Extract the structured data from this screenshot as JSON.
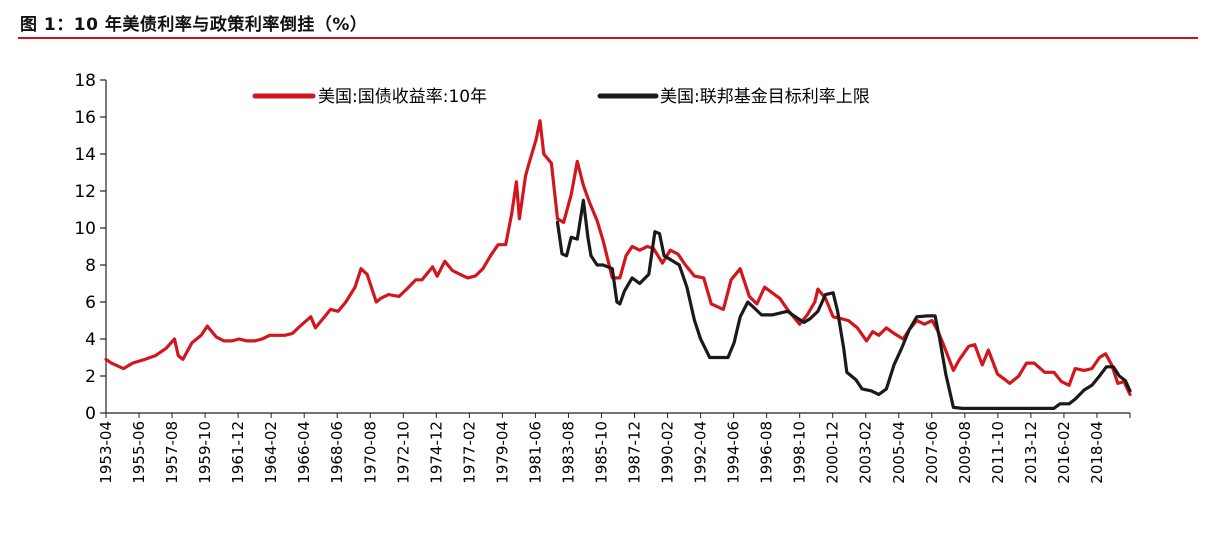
{
  "figure_title": "图 1：10 年美债利率与政策利率倒挂（%）",
  "colors": {
    "treasury": "#d2161d",
    "fedfunds": "#1a1a1a",
    "rule": "#c0161c"
  },
  "chart_data": {
    "type": "line",
    "title": "图 1：10 年美债利率与政策利率倒挂（%）",
    "xlabel": "",
    "ylabel": "",
    "ylim": [
      0,
      18
    ],
    "yticks": [
      0,
      2,
      4,
      6,
      8,
      10,
      12,
      14,
      16,
      18
    ],
    "xlim": [
      1953.25,
      2020.5
    ],
    "x_tick_labels": [
      "1953-04",
      "1955-06",
      "1957-08",
      "1959-10",
      "1961-12",
      "1964-02",
      "1966-04",
      "1968-06",
      "1970-08",
      "1972-10",
      "1974-12",
      "1977-02",
      "1979-04",
      "1981-06",
      "1983-08",
      "1985-10",
      "1987-12",
      "1990-02",
      "1992-04",
      "1994-06",
      "1996-08",
      "1998-10",
      "2000-12",
      "2003-02",
      "2005-04",
      "2007-06",
      "2009-08",
      "2011-10",
      "2013-12",
      "2016-02",
      "2018-04"
    ],
    "legend": {
      "placement": "top",
      "entries": [
        "美国:国债收益率:10年",
        "美国:联邦基金目标利率上限"
      ]
    },
    "series": [
      {
        "name": "美国:国债收益率:10年",
        "x": [
          1953.25,
          1953.6,
          1954.4,
          1955.0,
          1955.8,
          1956.5,
          1957.2,
          1957.75,
          1958.0,
          1958.3,
          1958.9,
          1959.5,
          1959.9,
          1960.5,
          1961.0,
          1961.5,
          1962.0,
          1962.5,
          1963.0,
          1963.5,
          1964.0,
          1964.5,
          1965.0,
          1965.5,
          1966.0,
          1966.7,
          1967.0,
          1967.5,
          1968.0,
          1968.5,
          1969.0,
          1969.6,
          1970.0,
          1970.4,
          1970.8,
          1971.0,
          1971.3,
          1971.8,
          1972.5,
          1973.0,
          1973.6,
          1974.0,
          1974.7,
          1975.0,
          1975.5,
          1976.0,
          1976.5,
          1977.0,
          1977.5,
          1978.0,
          1978.5,
          1979.0,
          1979.5,
          1979.9,
          1980.2,
          1980.4,
          1980.8,
          1981.0,
          1981.5,
          1981.75,
          1982.0,
          1982.5,
          1982.9,
          1983.3,
          1983.8,
          1984.2,
          1984.6,
          1985.0,
          1985.5,
          1985.9,
          1986.5,
          1987.0,
          1987.4,
          1987.8,
          1988.3,
          1988.8,
          1989.2,
          1989.8,
          1990.3,
          1990.8,
          1991.3,
          1991.9,
          1992.5,
          1993.0,
          1993.8,
          1994.3,
          1994.9,
          1995.5,
          1996.0,
          1996.5,
          1997.0,
          1997.5,
          1998.0,
          1998.8,
          1999.3,
          1999.8,
          2000.0,
          2000.5,
          2001.0,
          2001.5,
          2002.0,
          2002.6,
          2003.2,
          2003.6,
          2004.0,
          2004.5,
          2005.0,
          2005.6,
          2006.0,
          2006.5,
          2007.0,
          2007.5,
          2007.9,
          2008.3,
          2008.9,
          2009.3,
          2009.9,
          2010.3,
          2010.8,
          2011.2,
          2011.8,
          2012.3,
          2012.6,
          2013.2,
          2013.7,
          2014.2,
          2014.9,
          2015.5,
          2016.0,
          2016.5,
          2016.9,
          2017.5,
          2018.0,
          2018.5,
          2018.9,
          2019.3,
          2019.7,
          2020.1,
          2020.5
        ],
        "values": [
          2.9,
          2.7,
          2.4,
          2.7,
          2.9,
          3.1,
          3.5,
          4.0,
          3.1,
          2.9,
          3.8,
          4.2,
          4.7,
          4.1,
          3.9,
          3.9,
          4.0,
          3.9,
          3.9,
          4.0,
          4.2,
          4.2,
          4.2,
          4.3,
          4.7,
          5.2,
          4.6,
          5.1,
          5.6,
          5.5,
          6.0,
          6.8,
          7.8,
          7.5,
          6.5,
          6.0,
          6.2,
          6.4,
          6.3,
          6.7,
          7.2,
          7.2,
          7.9,
          7.4,
          8.2,
          7.7,
          7.5,
          7.3,
          7.4,
          7.8,
          8.5,
          9.1,
          9.1,
          10.8,
          12.5,
          10.5,
          12.8,
          13.4,
          14.8,
          15.8,
          14.0,
          13.5,
          10.5,
          10.3,
          11.8,
          13.6,
          12.3,
          11.4,
          10.4,
          9.3,
          7.3,
          7.3,
          8.5,
          9.0,
          8.8,
          9.0,
          8.9,
          8.1,
          8.8,
          8.6,
          8.0,
          7.4,
          7.3,
          5.9,
          5.6,
          7.2,
          7.8,
          6.3,
          5.9,
          6.8,
          6.5,
          6.2,
          5.6,
          4.8,
          5.3,
          6.0,
          6.7,
          6.2,
          5.2,
          5.1,
          5.0,
          4.6,
          3.9,
          4.4,
          4.2,
          4.6,
          4.3,
          4.0,
          4.5,
          5.0,
          4.8,
          5.0,
          4.4,
          3.6,
          2.3,
          2.9,
          3.6,
          3.7,
          2.6,
          3.4,
          2.1,
          1.8,
          1.6,
          2.0,
          2.7,
          2.7,
          2.2,
          2.2,
          1.7,
          1.5,
          2.4,
          2.3,
          2.4,
          3.0,
          3.2,
          2.6,
          1.6,
          1.7,
          1.0
        ]
      },
      {
        "name": "美国:联邦基金目标利率上限",
        "x": [
          1982.9,
          1983.2,
          1983.5,
          1983.8,
          1984.2,
          1984.6,
          1984.9,
          1985.1,
          1985.5,
          1985.9,
          1986.5,
          1986.8,
          1987.0,
          1987.3,
          1987.8,
          1988.3,
          1988.9,
          1989.3,
          1989.6,
          1989.9,
          1990.5,
          1990.9,
          1991.4,
          1991.9,
          1992.3,
          1992.9,
          1993.5,
          1994.1,
          1994.5,
          1994.9,
          1995.4,
          1995.8,
          1996.3,
          1997.0,
          1998.0,
          1998.7,
          1999.1,
          1999.5,
          2000.0,
          2000.5,
          2001.0,
          2001.3,
          2001.7,
          2001.9,
          2002.5,
          2002.9,
          2003.5,
          2004.0,
          2004.5,
          2005.0,
          2005.5,
          2006.0,
          2006.5,
          2007.2,
          2007.7,
          2008.0,
          2008.4,
          2008.9,
          2009.5,
          2010.5,
          2011.5,
          2012.5,
          2013.5,
          2014.5,
          2015.5,
          2015.9,
          2016.5,
          2016.9,
          2017.5,
          2018.0,
          2018.5,
          2018.95,
          2019.4,
          2019.8,
          2020.2,
          2020.5
        ],
        "values": [
          10.3,
          8.6,
          8.5,
          9.5,
          9.4,
          11.5,
          9.5,
          8.5,
          8.0,
          8.0,
          7.8,
          6.0,
          5.9,
          6.6,
          7.3,
          7.0,
          7.5,
          9.8,
          9.7,
          8.5,
          8.2,
          8.0,
          6.8,
          5.0,
          4.0,
          3.0,
          3.0,
          3.0,
          3.8,
          5.2,
          6.0,
          5.7,
          5.3,
          5.3,
          5.5,
          5.1,
          4.9,
          5.1,
          5.5,
          6.4,
          6.5,
          5.5,
          3.5,
          2.2,
          1.8,
          1.3,
          1.2,
          1.0,
          1.3,
          2.6,
          3.5,
          4.5,
          5.2,
          5.25,
          5.25,
          4.0,
          2.1,
          0.3,
          0.25,
          0.25,
          0.25,
          0.25,
          0.25,
          0.25,
          0.25,
          0.5,
          0.5,
          0.75,
          1.25,
          1.5,
          2.0,
          2.5,
          2.5,
          2.0,
          1.75,
          1.2
        ]
      }
    ]
  }
}
